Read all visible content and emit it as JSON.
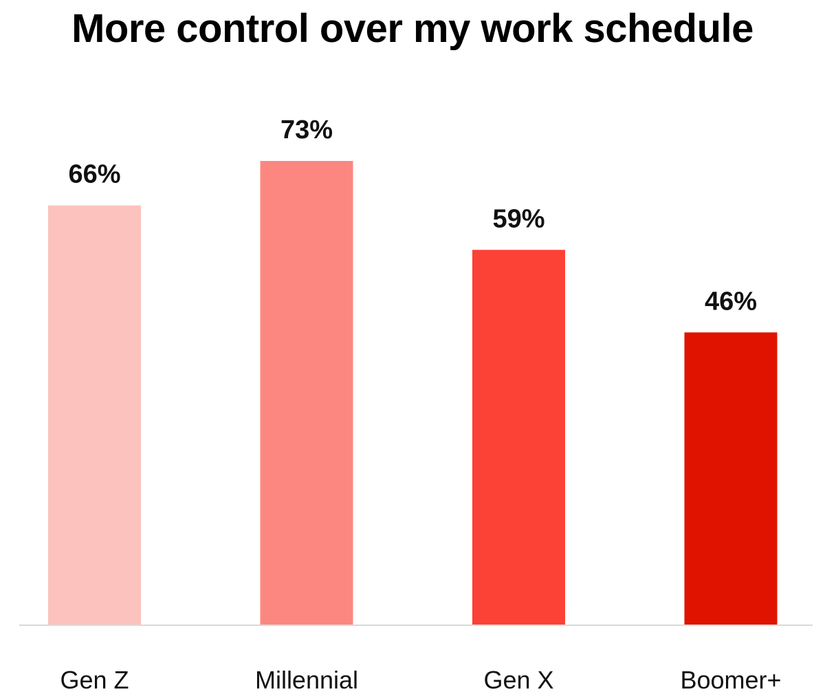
{
  "chart_data": {
    "type": "bar",
    "title": "More control over my work schedule",
    "categories": [
      "Gen Z",
      "Millennial",
      "Gen X",
      "Boomer+"
    ],
    "values": [
      66,
      73,
      59,
      46
    ],
    "value_labels": [
      "66%",
      "73%",
      "59%",
      "46%"
    ],
    "colors": [
      "#FCC2BD",
      "#FC8781",
      "#FC4136",
      "#E01300"
    ],
    "axis_color": "#D9D9D9",
    "ylim": [
      0,
      73
    ],
    "grid": false,
    "legend": "none"
  }
}
